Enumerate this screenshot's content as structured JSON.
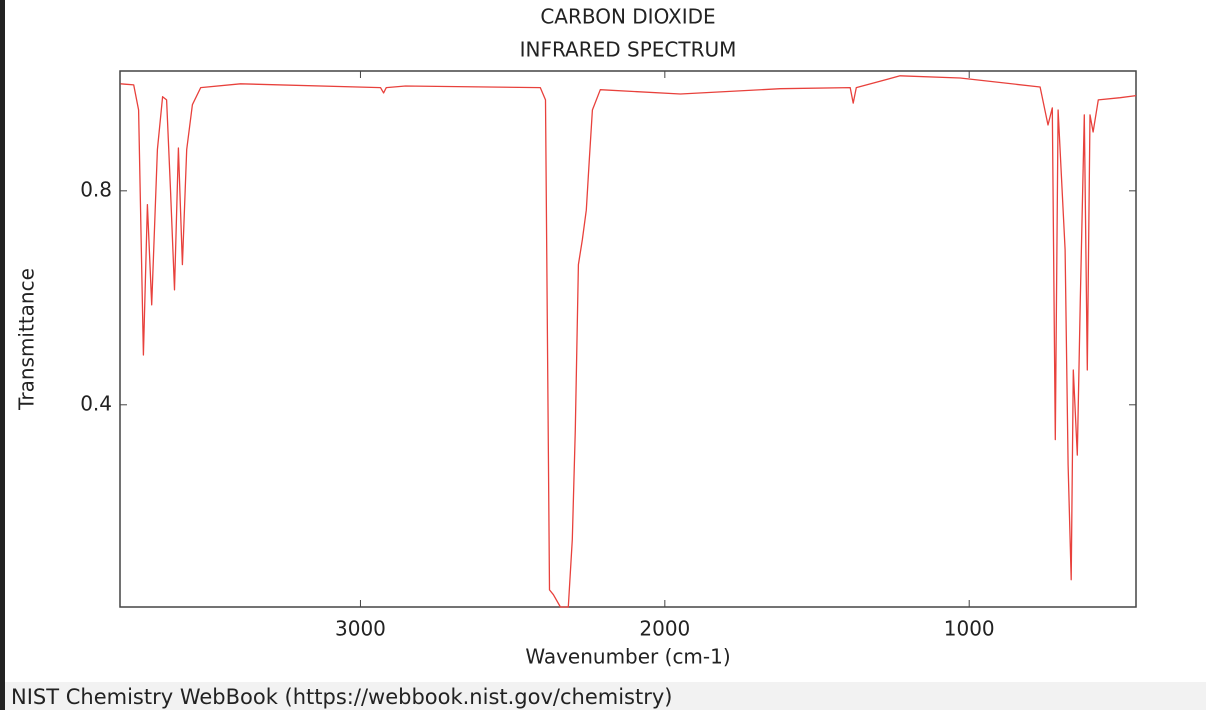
{
  "chart_data": {
    "type": "line",
    "title": "CARBON DIOXIDE",
    "subtitle": "INFRARED SPECTRUM",
    "xlabel": "Wavenumber (cm-1)",
    "ylabel": "Transmittance",
    "color": "#e8413c",
    "x": [
      3788,
      3745,
      3729,
      3713,
      3700,
      3686,
      3667,
      3650,
      3637,
      3624,
      3611,
      3598,
      3585,
      3571,
      3552,
      3525,
      3394,
      2934,
      2924,
      2915,
      2852,
      2409,
      2392,
      2379,
      2366,
      2343,
      2317,
      2304,
      2294,
      2284,
      2271,
      2258,
      2248,
      2238,
      2212,
      1949,
      1621,
      1391,
      1381,
      1371,
      1227,
      1030,
      767,
      741,
      727,
      717,
      708,
      685,
      675,
      665,
      658,
      645,
      635,
      622,
      612,
      603,
      593,
      576,
      504,
      452
    ],
    "values": [
      1.0,
      0.998,
      0.951,
      0.493,
      0.774,
      0.587,
      0.877,
      0.976,
      0.97,
      0.802,
      0.615,
      0.88,
      0.662,
      0.877,
      0.961,
      0.993,
      1.0,
      0.993,
      0.983,
      0.993,
      0.996,
      0.993,
      0.97,
      0.054,
      0.045,
      0.022,
      0.022,
      0.148,
      0.353,
      0.662,
      0.708,
      0.764,
      0.858,
      0.951,
      0.989,
      0.981,
      0.991,
      0.993,
      0.964,
      0.993,
      1.015,
      1.011,
      0.994,
      0.923,
      0.955,
      0.335,
      0.951,
      0.69,
      0.288,
      0.073,
      0.465,
      0.306,
      0.596,
      0.942,
      0.465,
      0.942,
      0.91,
      0.97,
      0.974,
      0.978
    ],
    "xlim": [
      3790,
      452
    ],
    "ylim": [
      0.022,
      1.024
    ],
    "xticks": [
      3000,
      2000,
      1000
    ],
    "yticks": [
      0.4,
      0.8
    ]
  },
  "footer": "NIST Chemistry WebBook (https://webbook.nist.gov/chemistry)"
}
